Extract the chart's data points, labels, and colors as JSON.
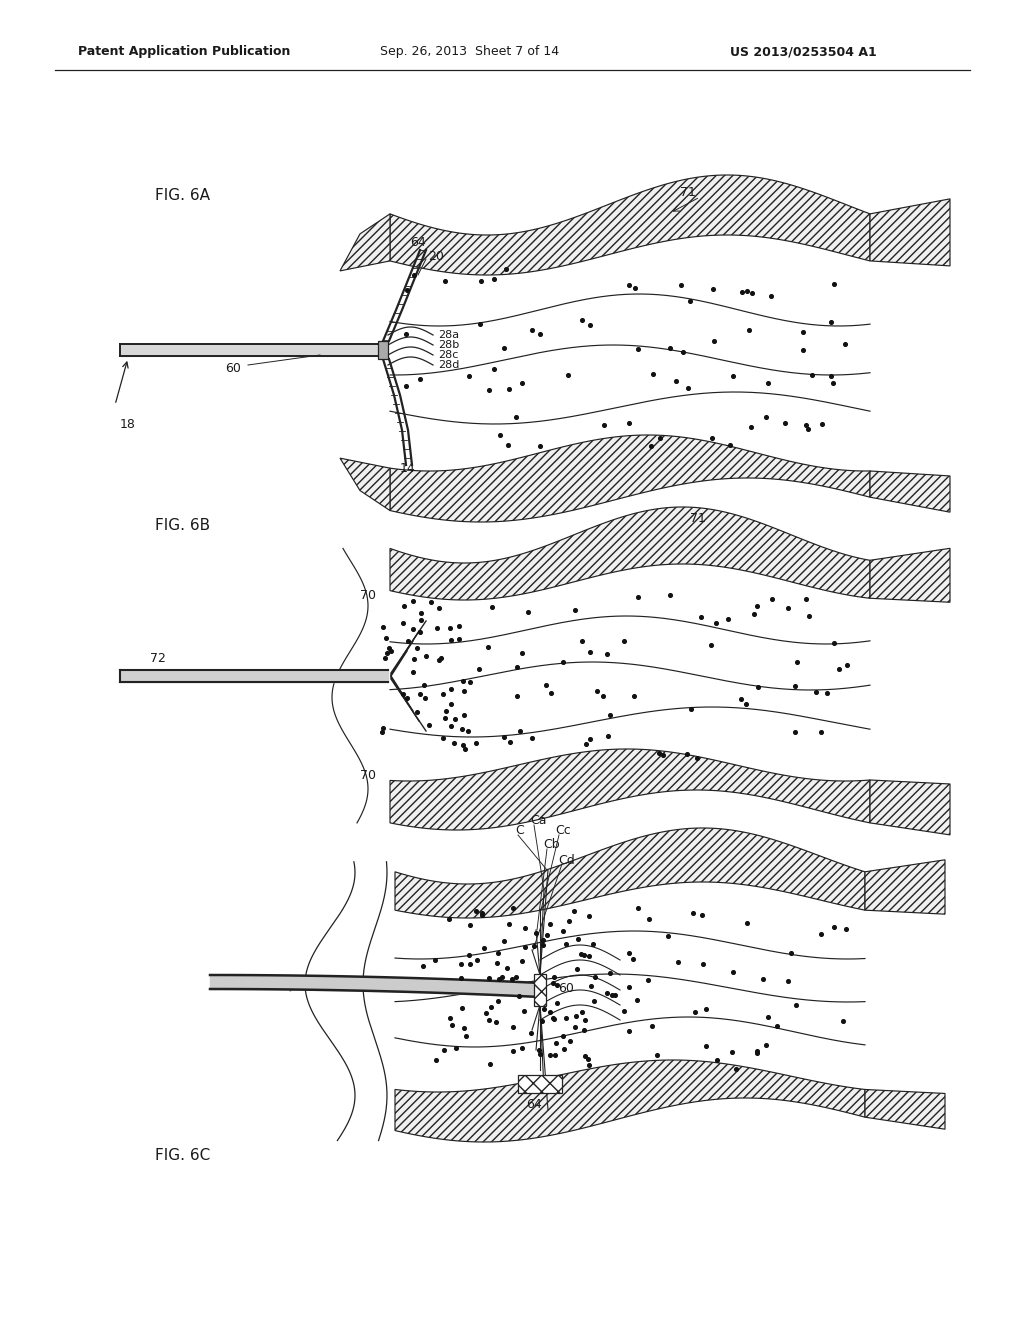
{
  "background_color": "#ffffff",
  "header_left": "Patent Application Publication",
  "header_center": "Sep. 26, 2013  Sheet 7 of 14",
  "header_right": "US 2013/0253504 A1",
  "label_color": "#1a1a1a",
  "line_color": "#222222",
  "dot_color": "#111111"
}
